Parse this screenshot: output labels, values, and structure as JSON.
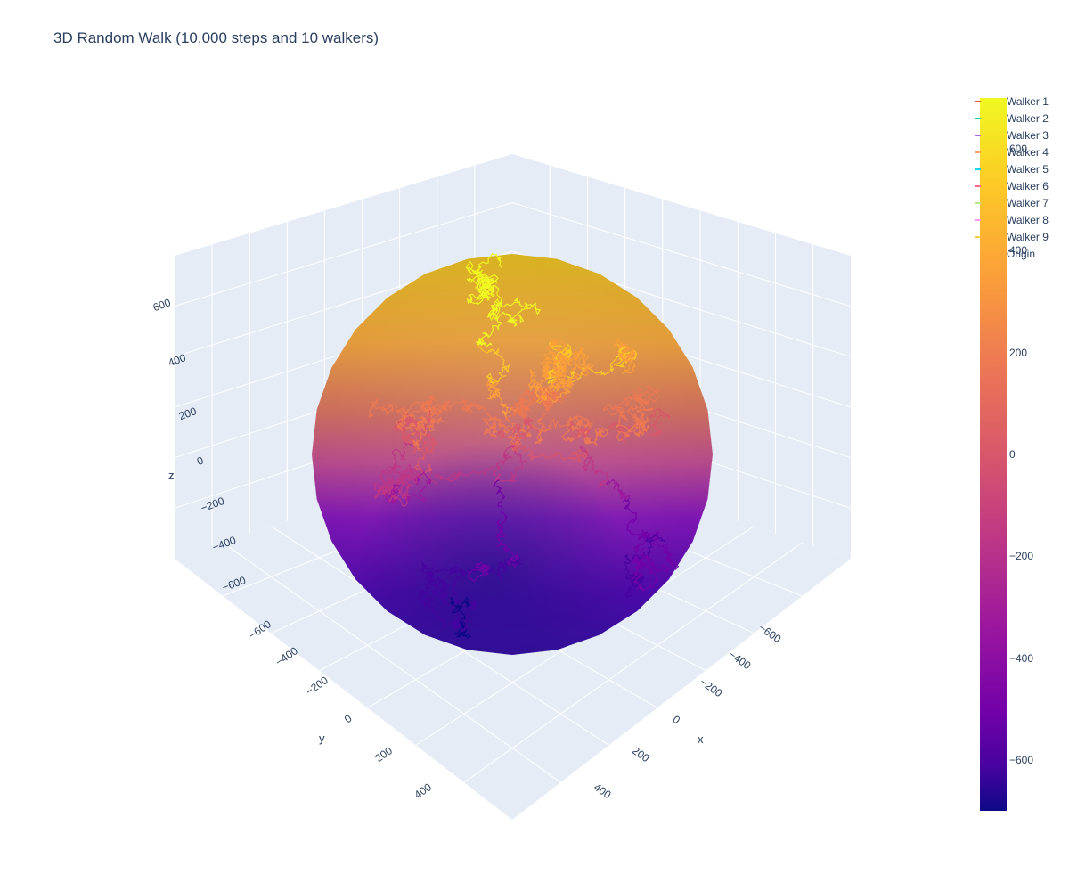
{
  "title": "3D Random Walk (10,000 steps and 10 walkers)",
  "chart_data": {
    "type": "scatter3d",
    "title": "3D Random Walk (10,000 steps and 10 walkers)",
    "steps": 10000,
    "walkers": 10,
    "axes": {
      "x": {
        "label": "x",
        "ticks": [
          "−600",
          "−400",
          "−200",
          "0",
          "200",
          "400"
        ],
        "range": [
          -700,
          500
        ]
      },
      "y": {
        "label": "y",
        "ticks": [
          "−600",
          "−400",
          "−200",
          "0",
          "200",
          "400"
        ],
        "range": [
          -700,
          500
        ]
      },
      "z": {
        "label": "z",
        "ticks": [
          "600",
          "400",
          "200",
          "0",
          "−200",
          "−400",
          "−600"
        ],
        "range": [
          -700,
          700
        ]
      }
    },
    "surface": {
      "shape": "sphere",
      "radius_approx": 700,
      "center": [
        0,
        0,
        0
      ]
    },
    "legend": {
      "placement": "top-right",
      "entries": [
        {
          "name": "Walker 1",
          "color": "#ef553b"
        },
        {
          "name": "Walker 2",
          "color": "#00cc96"
        },
        {
          "name": "Walker 3",
          "color": "#ab63fa"
        },
        {
          "name": "Walker 4",
          "color": "#ffa15a"
        },
        {
          "name": "Walker 5",
          "color": "#19d3f3"
        },
        {
          "name": "Walker 6",
          "color": "#ff6692"
        },
        {
          "name": "Walker 7",
          "color": "#b6e880"
        },
        {
          "name": "Walker 8",
          "color": "#ff97ff"
        },
        {
          "name": "Walker 9",
          "color": "#fecb52"
        },
        {
          "name": "Origin",
          "color": ""
        }
      ]
    },
    "colorbar": {
      "colorscale": "plasma",
      "range": [
        -700,
        700
      ],
      "ticks": [
        {
          "value": 600,
          "label": "600"
        },
        {
          "value": 400,
          "label": "400"
        },
        {
          "value": 200,
          "label": "200"
        },
        {
          "value": 0,
          "label": "0"
        },
        {
          "value": -200,
          "label": "−200"
        },
        {
          "value": -400,
          "label": "−400"
        },
        {
          "value": -600,
          "label": "−600"
        }
      ]
    }
  }
}
